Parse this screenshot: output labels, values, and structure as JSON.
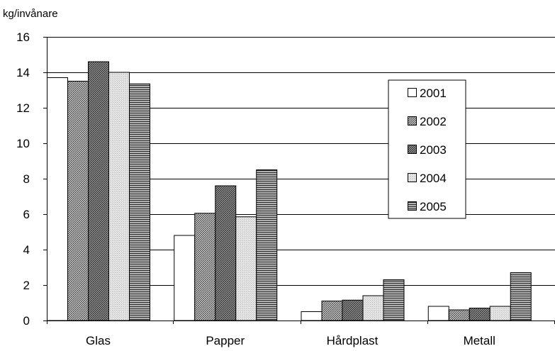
{
  "chart_data": {
    "type": "bar",
    "title": "",
    "ylabel": "kg/invånare",
    "xlabel": "",
    "ylim": [
      0,
      16
    ],
    "yticks": [
      0,
      2,
      4,
      6,
      8,
      10,
      12,
      14,
      16
    ],
    "grid": true,
    "legend_position": "right",
    "categories": [
      "Glas",
      "Papper",
      "Hårdplast",
      "Metall"
    ],
    "series": [
      {
        "name": "2001",
        "values": [
          13.7,
          4.8,
          0.5,
          0.8
        ]
      },
      {
        "name": "2002",
        "values": [
          13.5,
          6.05,
          1.1,
          0.6
        ]
      },
      {
        "name": "2003",
        "values": [
          14.6,
          7.6,
          1.15,
          0.7
        ]
      },
      {
        "name": "2004",
        "values": [
          14.0,
          5.85,
          1.4,
          0.8
        ]
      },
      {
        "name": "2005",
        "values": [
          13.35,
          8.5,
          2.3,
          2.7
        ]
      }
    ]
  }
}
